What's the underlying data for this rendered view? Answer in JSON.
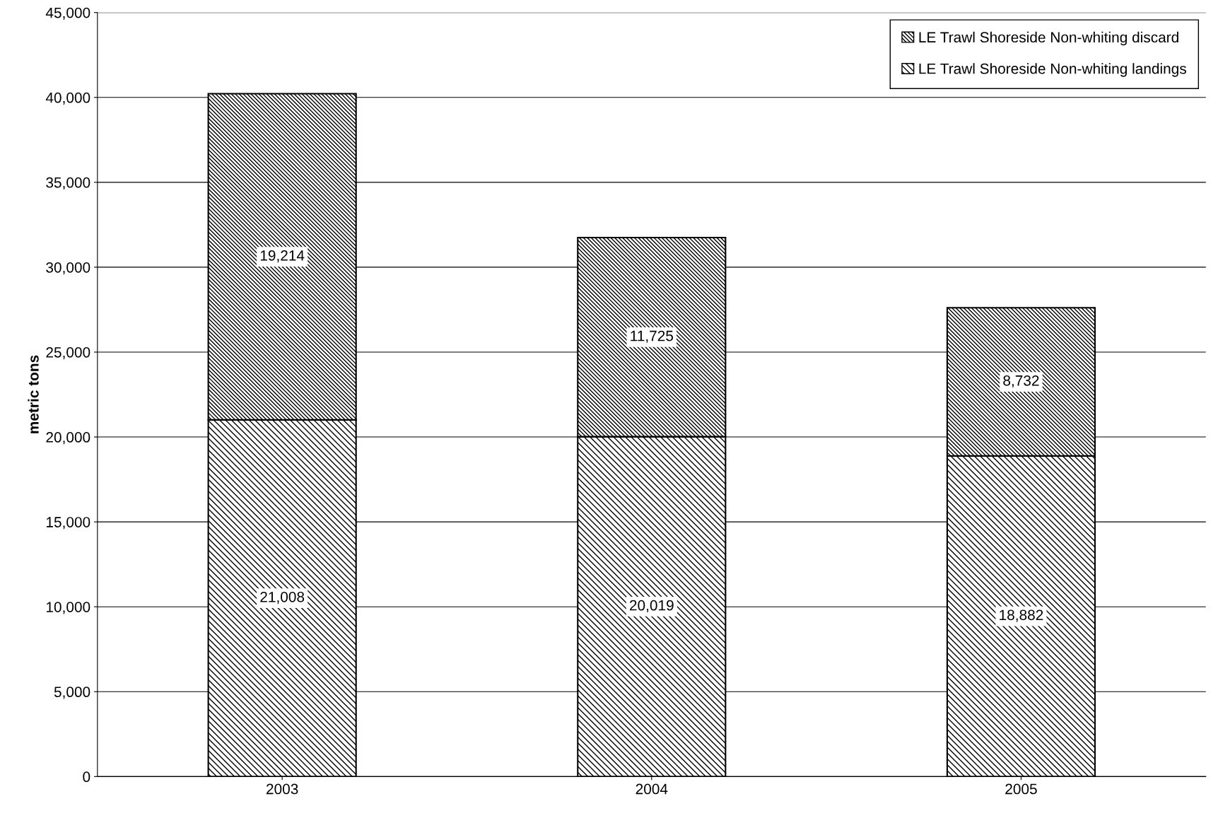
{
  "chart_data": {
    "type": "bar",
    "stacked": true,
    "ylabel": "metric tons",
    "categories": [
      "2003",
      "2004",
      "2005"
    ],
    "series": [
      {
        "name": "LE Trawl Shoreside Non-whiting landings",
        "color": "#000000",
        "values": [
          21008,
          20019,
          18882
        ],
        "value_labels": [
          "21,008",
          "20,019",
          "18,882"
        ]
      },
      {
        "name": "LE Trawl Shoreside Non-whiting discard",
        "color": "#000000",
        "values": [
          19214,
          11725,
          8732
        ],
        "value_labels": [
          "19,214",
          "11,725",
          "8,732"
        ]
      }
    ],
    "ylim": [
      0,
      45000
    ],
    "yticks": [
      {
        "value": 0,
        "label": "0"
      },
      {
        "value": 5000,
        "label": "5,000"
      },
      {
        "value": 10000,
        "label": "10,000"
      },
      {
        "value": 15000,
        "label": "15,000"
      },
      {
        "value": 20000,
        "label": "20,000"
      },
      {
        "value": 25000,
        "label": "25,000"
      },
      {
        "value": 30000,
        "label": "30,000"
      },
      {
        "value": 35000,
        "label": "35,000"
      },
      {
        "value": 40000,
        "label": "40,000"
      },
      {
        "value": 45000,
        "label": "45,000"
      }
    ],
    "grid": "y",
    "legend": "top right"
  }
}
